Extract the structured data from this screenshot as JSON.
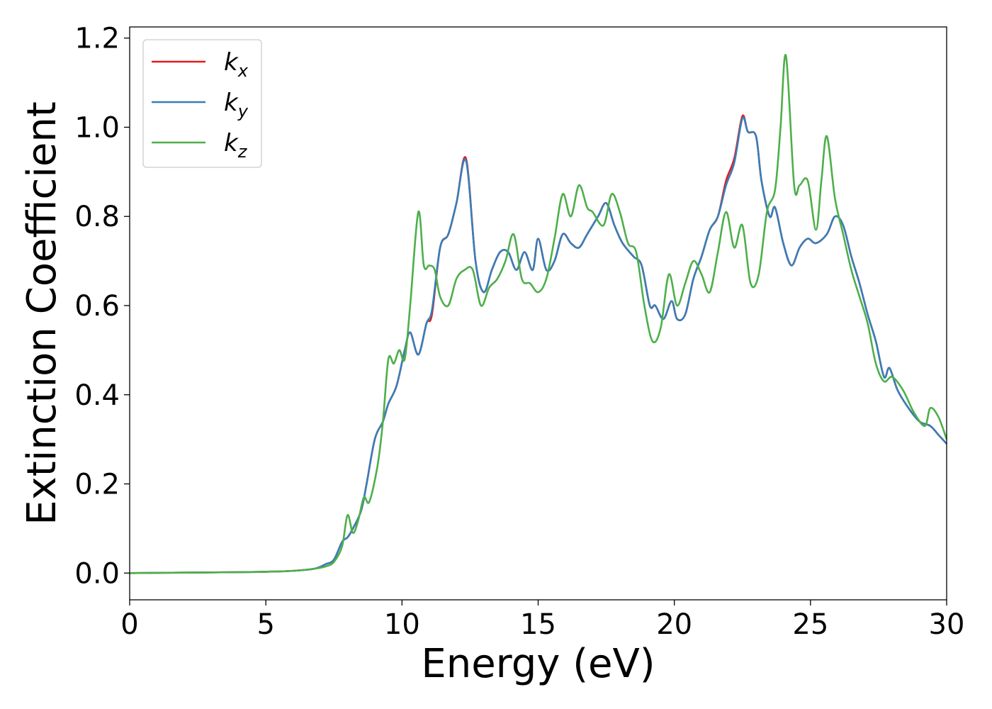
{
  "chart_data": {
    "type": "line",
    "xlabel": "Energy (eV)",
    "ylabel": "Extinction Coefficient",
    "xlim": [
      0,
      30
    ],
    "ylim": [
      -0.06,
      1.225
    ],
    "xticks": [
      0,
      5,
      10,
      15,
      20,
      25,
      30
    ],
    "xtick_labels": [
      "0",
      "5",
      "10",
      "15",
      "20",
      "25",
      "30"
    ],
    "yticks": [
      0.0,
      0.2,
      0.4,
      0.6,
      0.8,
      1.0,
      1.2
    ],
    "ytick_labels": [
      "0.0",
      "0.2",
      "0.4",
      "0.6",
      "0.8",
      "1.0",
      "1.2"
    ],
    "grid": false,
    "legend_position": "top-left",
    "series": [
      {
        "name": "kx",
        "label_base": "k",
        "label_sub": "x",
        "color": "#e41a1c",
        "x": [
          0,
          2,
          4,
          5,
          6,
          6.8,
          7.2,
          7.5,
          7.8,
          8.0,
          8.2,
          8.5,
          8.7,
          9.0,
          9.3,
          9.5,
          9.8,
          10.1,
          10.3,
          10.6,
          10.9,
          11.1,
          11.4,
          11.7,
          12.0,
          12.35,
          12.7,
          13.0,
          13.3,
          13.6,
          13.9,
          14.2,
          14.5,
          14.8,
          15.0,
          15.3,
          15.6,
          15.9,
          16.2,
          16.5,
          16.8,
          17.2,
          17.5,
          17.8,
          18.1,
          18.5,
          18.8,
          19.1,
          19.3,
          19.6,
          19.9,
          20.1,
          20.4,
          20.7,
          21.0,
          21.3,
          21.6,
          21.9,
          22.2,
          22.5,
          22.7,
          23.0,
          23.2,
          23.5,
          23.7,
          24.0,
          24.3,
          24.6,
          24.9,
          25.2,
          25.6,
          25.9,
          26.2,
          26.5,
          26.8,
          27.1,
          27.4,
          27.7,
          27.9,
          28.2,
          28.6,
          29.0,
          29.4,
          29.7,
          30.0
        ],
        "y": [
          0.0,
          0.001,
          0.002,
          0.003,
          0.005,
          0.01,
          0.02,
          0.03,
          0.07,
          0.08,
          0.1,
          0.14,
          0.2,
          0.3,
          0.34,
          0.38,
          0.42,
          0.5,
          0.54,
          0.49,
          0.56,
          0.58,
          0.73,
          0.76,
          0.83,
          0.93,
          0.7,
          0.63,
          0.68,
          0.72,
          0.72,
          0.68,
          0.72,
          0.68,
          0.75,
          0.68,
          0.7,
          0.76,
          0.74,
          0.73,
          0.76,
          0.8,
          0.83,
          0.78,
          0.74,
          0.71,
          0.69,
          0.6,
          0.6,
          0.57,
          0.61,
          0.57,
          0.58,
          0.66,
          0.71,
          0.77,
          0.8,
          0.88,
          0.93,
          1.025,
          0.99,
          0.98,
          0.88,
          0.8,
          0.82,
          0.74,
          0.69,
          0.73,
          0.75,
          0.74,
          0.76,
          0.8,
          0.78,
          0.71,
          0.65,
          0.58,
          0.52,
          0.44,
          0.46,
          0.41,
          0.37,
          0.34,
          0.33,
          0.31,
          0.29
        ]
      },
      {
        "name": "ky",
        "label_base": "k",
        "label_sub": "y",
        "color": "#377eb8",
        "x": [
          0,
          2,
          4,
          5,
          6,
          6.8,
          7.2,
          7.5,
          7.8,
          8.0,
          8.2,
          8.5,
          8.7,
          9.0,
          9.3,
          9.5,
          9.8,
          10.1,
          10.3,
          10.6,
          10.9,
          11.1,
          11.4,
          11.7,
          12.0,
          12.35,
          12.7,
          13.0,
          13.3,
          13.6,
          13.9,
          14.2,
          14.5,
          14.8,
          15.0,
          15.3,
          15.6,
          15.9,
          16.2,
          16.5,
          16.8,
          17.2,
          17.5,
          17.8,
          18.1,
          18.5,
          18.8,
          19.1,
          19.3,
          19.6,
          19.9,
          20.1,
          20.4,
          20.7,
          21.0,
          21.3,
          21.6,
          21.9,
          22.2,
          22.5,
          22.7,
          23.0,
          23.2,
          23.5,
          23.7,
          24.0,
          24.3,
          24.6,
          24.9,
          25.2,
          25.6,
          25.9,
          26.2,
          26.5,
          26.8,
          27.1,
          27.4,
          27.7,
          27.9,
          28.2,
          28.6,
          29.0,
          29.4,
          29.7,
          30.0
        ],
        "y": [
          0.0,
          0.001,
          0.002,
          0.003,
          0.005,
          0.01,
          0.02,
          0.03,
          0.07,
          0.08,
          0.1,
          0.14,
          0.2,
          0.3,
          0.34,
          0.38,
          0.42,
          0.5,
          0.54,
          0.49,
          0.56,
          0.59,
          0.73,
          0.76,
          0.83,
          0.925,
          0.7,
          0.63,
          0.68,
          0.72,
          0.72,
          0.68,
          0.72,
          0.68,
          0.75,
          0.68,
          0.7,
          0.76,
          0.74,
          0.73,
          0.76,
          0.8,
          0.83,
          0.78,
          0.74,
          0.71,
          0.69,
          0.6,
          0.6,
          0.57,
          0.61,
          0.57,
          0.58,
          0.66,
          0.71,
          0.77,
          0.8,
          0.87,
          0.92,
          1.02,
          0.99,
          0.98,
          0.88,
          0.8,
          0.82,
          0.74,
          0.69,
          0.73,
          0.75,
          0.74,
          0.76,
          0.8,
          0.78,
          0.71,
          0.65,
          0.58,
          0.52,
          0.44,
          0.46,
          0.41,
          0.37,
          0.34,
          0.33,
          0.31,
          0.29
        ]
      },
      {
        "name": "kz",
        "label_base": "k",
        "label_sub": "z",
        "color": "#4daf4a",
        "x": [
          0,
          2,
          4,
          5,
          6,
          6.8,
          7.2,
          7.5,
          7.8,
          8.0,
          8.2,
          8.4,
          8.6,
          8.8,
          9.1,
          9.3,
          9.5,
          9.7,
          9.9,
          10.1,
          10.3,
          10.6,
          10.8,
          11.0,
          11.2,
          11.4,
          11.7,
          12.0,
          12.3,
          12.6,
          12.9,
          13.2,
          13.5,
          13.8,
          14.1,
          14.4,
          14.7,
          15.0,
          15.3,
          15.6,
          15.9,
          16.2,
          16.5,
          16.8,
          17.0,
          17.4,
          17.7,
          18.0,
          18.3,
          18.6,
          18.9,
          19.2,
          19.5,
          19.8,
          20.1,
          20.4,
          20.7,
          21.0,
          21.3,
          21.6,
          21.9,
          22.2,
          22.5,
          22.8,
          23.1,
          23.4,
          23.7,
          23.9,
          24.1,
          24.4,
          24.6,
          24.9,
          25.2,
          25.4,
          25.6,
          25.9,
          26.2,
          26.5,
          26.8,
          27.1,
          27.4,
          27.7,
          28.0,
          28.4,
          28.8,
          29.2,
          29.4,
          29.7,
          30.0
        ],
        "y": [
          0.0,
          0.001,
          0.002,
          0.003,
          0.005,
          0.01,
          0.015,
          0.025,
          0.06,
          0.13,
          0.09,
          0.12,
          0.17,
          0.16,
          0.24,
          0.34,
          0.48,
          0.47,
          0.5,
          0.48,
          0.6,
          0.81,
          0.69,
          0.69,
          0.68,
          0.62,
          0.6,
          0.66,
          0.68,
          0.68,
          0.6,
          0.64,
          0.66,
          0.7,
          0.76,
          0.66,
          0.65,
          0.63,
          0.66,
          0.75,
          0.85,
          0.8,
          0.87,
          0.82,
          0.81,
          0.78,
          0.85,
          0.81,
          0.74,
          0.72,
          0.6,
          0.52,
          0.55,
          0.67,
          0.6,
          0.65,
          0.7,
          0.67,
          0.63,
          0.72,
          0.81,
          0.73,
          0.78,
          0.65,
          0.67,
          0.81,
          0.86,
          1.0,
          1.16,
          0.87,
          0.87,
          0.88,
          0.77,
          0.88,
          0.98,
          0.84,
          0.76,
          0.68,
          0.62,
          0.56,
          0.47,
          0.43,
          0.44,
          0.41,
          0.36,
          0.33,
          0.37,
          0.35,
          0.3
        ]
      }
    ]
  }
}
